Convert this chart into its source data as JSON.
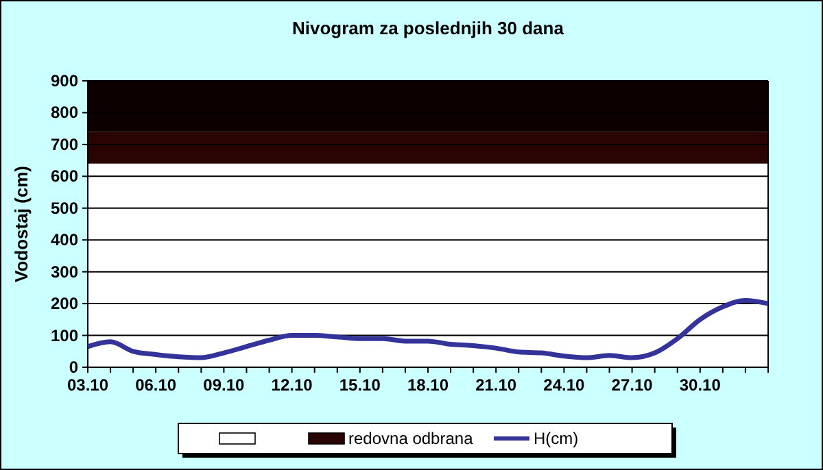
{
  "chart_data": {
    "type": "line",
    "title": "Nivogram za poslednjih 30 dana",
    "ylabel": "Vodostaj (cm)",
    "categories": [
      "03.10",
      null,
      null,
      "06.10",
      null,
      null,
      "09.10",
      null,
      null,
      "12.10",
      null,
      null,
      "15.10",
      null,
      null,
      "18.10",
      null,
      null,
      "21.10",
      null,
      null,
      "24.10",
      null,
      null,
      "27.10",
      null,
      null,
      "30.10",
      null,
      null,
      null
    ],
    "series": [
      {
        "name": "H(cm)",
        "color": "#333399",
        "values": [
          65,
          80,
          50,
          40,
          33,
          30,
          45,
          65,
          85,
          100,
          100,
          95,
          90,
          90,
          82,
          82,
          72,
          68,
          60,
          48,
          45,
          35,
          30,
          37,
          30,
          45,
          90,
          150,
          190,
          210,
          200
        ]
      }
    ],
    "ylim": [
      0,
      900
    ],
    "yticks": [
      0,
      100,
      200,
      300,
      400,
      500,
      600,
      700,
      800,
      900
    ],
    "grid": "y",
    "legend": "bottom",
    "bands": [
      {
        "axis": "y",
        "from": 640,
        "to": 740,
        "label": "redovna odbrana",
        "color": "#2a0303"
      },
      {
        "axis": "y",
        "from": 740,
        "to": 900,
        "color": "#0d0000"
      }
    ]
  }
}
